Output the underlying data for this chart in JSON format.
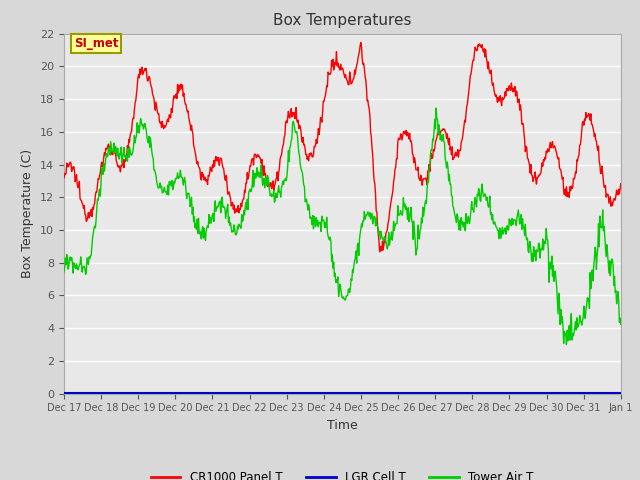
{
  "title": "Box Temperatures",
  "xlabel": "Time",
  "ylabel": "Box Temperature (C)",
  "ylim": [
    0,
    22
  ],
  "yticks": [
    0,
    2,
    4,
    6,
    8,
    10,
    12,
    14,
    16,
    18,
    20,
    22
  ],
  "xtick_labels": [
    "Dec 17",
    "Dec 18",
    "Dec 19",
    "Dec 20",
    "Dec 21",
    "Dec 22",
    "Dec 23",
    "Dec 24",
    "Dec 25",
    "Dec 26",
    "Dec 27",
    "Dec 28",
    "Dec 29",
    "Dec 30",
    "Dec 31",
    "Jan 1"
  ],
  "background_color": "#d8d8d8",
  "plot_bg_color": "#e8e8e8",
  "grid_color": "#ffffff",
  "line_colors": {
    "cr1000": "#ff0000",
    "lgr": "#0000cc",
    "tower": "#00cc00"
  },
  "legend_labels": [
    "CR1000 Panel T",
    "LGR Cell T",
    "Tower Air T"
  ],
  "annotation_text": "SI_met",
  "annotation_box_color": "#ffff99",
  "annotation_border_color": "#999900",
  "annotation_text_color": "#cc0000"
}
